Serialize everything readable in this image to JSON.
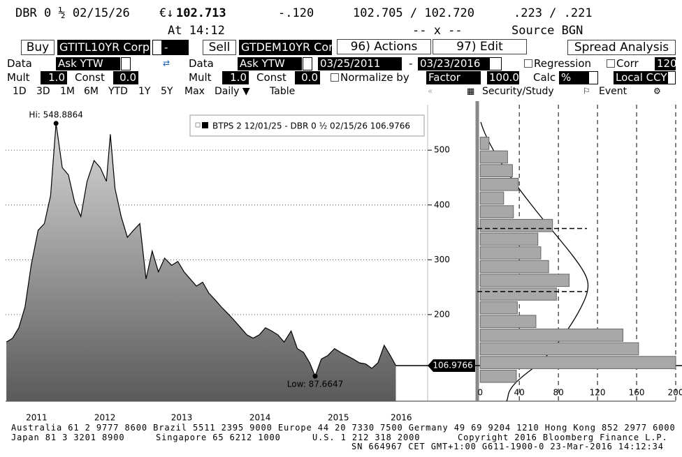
{
  "header": {
    "ticker": "DBR 0 ½ 02/15/26",
    "price_prefix": "€↓",
    "price": "102.713",
    "change": "-.120",
    "bid_ask": "102.705 / 102.720",
    "yields": ".223 / .221",
    "time": "At 14:12",
    "cross": "-- x --",
    "source": "Source BGN"
  },
  "toolbar": {
    "buy": "Buy",
    "security1": "GTITL10YR Corp",
    "security1_flag": "-",
    "sell": "Sell",
    "security2": "GTDEM10YR Cor",
    "actions": "96) Actions",
    "edit": "97) Edit",
    "spread": "Spread Analysis"
  },
  "settings": {
    "left": {
      "data_label": "Data",
      "data_value": "Ask YTW",
      "mult_label": "Mult",
      "mult_value": "1.0",
      "const_label": "Const",
      "const_value": "0.0"
    },
    "right": {
      "data_label": "Data",
      "data_value": "Ask YTW",
      "date_from": "03/25/2011",
      "dash": "-",
      "date_to": "03/23/2016",
      "mult_label": "Mult",
      "mult_value": "1.0",
      "const_label": "Const",
      "const_value": "0.0"
    },
    "options": {
      "regression": "Regression",
      "corr": "Corr",
      "corr_value": "120",
      "normalize": "Normalize by",
      "factor": "Factor",
      "factor_value": "100.0",
      "calc": "Calc",
      "calc_value": "%",
      "currency": "Local CCY"
    }
  },
  "ranges": [
    "1D",
    "3D",
    "1M",
    "6M",
    "YTD",
    "1Y",
    "5Y",
    "Max"
  ],
  "view": {
    "period": "Daily ▼",
    "table": "Table",
    "study": "Security/Study",
    "event": "Event"
  },
  "footer": {
    "line1": "Australia 61 2 9777 8600 Brazil 5511 2395 9000 Europe 44 20 7330 7500 Germany 49 69 9204 1210 Hong Kong 852 2977 6000",
    "japan": "Japan 81 3 3201 8900",
    "singapore": "Singapore 65 6212 1000",
    "us": "U.S. 1 212 318 2000",
    "copyright": "Copyright 2016 Bloomberg Finance L.P.",
    "line3": "SN 664967 CET   GMT+1:00 G611-1900-0 23-Mar-2016 14:12:34"
  },
  "chart_data": [
    {
      "type": "area",
      "x": [
        2011.23,
        2011.31,
        2011.39,
        2011.47,
        2011.55,
        2011.64,
        2011.72,
        2011.8,
        2011.87,
        2011.95,
        2012.03,
        2012.11,
        2012.19,
        2012.27,
        2012.36,
        2012.44,
        2012.52,
        2012.57,
        2012.63,
        2012.71,
        2012.79,
        2012.87,
        2012.95,
        2013.03,
        2013.11,
        2013.19,
        2013.27,
        2013.36,
        2013.44,
        2013.52,
        2013.6,
        2013.68,
        2013.76,
        2013.84,
        2013.92,
        2014.0,
        2014.09,
        2014.17,
        2014.25,
        2014.33,
        2014.41,
        2014.49,
        2014.57,
        2014.65,
        2014.73,
        2014.81,
        2014.9,
        2014.98,
        2015.06,
        2015.14,
        2015.21,
        2015.29,
        2015.37,
        2015.46,
        2015.54,
        2015.62,
        2015.7,
        2015.78,
        2015.86,
        2015.94,
        2016.02,
        2016.1,
        2016.18,
        2016.25
      ],
      "series": [
        {
          "name": "BTPS 2 12/01/25 - DBR 0 ½ 02/15/26 106.9766",
          "color": "#000000",
          "values": [
            150,
            157,
            176,
            214,
            290,
            354,
            366,
            417,
            548.8864,
            468,
            455,
            405,
            379,
            443,
            481,
            468,
            443,
            529,
            430,
            379,
            341,
            354,
            366,
            265,
            316,
            278,
            303,
            290,
            297,
            278,
            265,
            252,
            259,
            239,
            227,
            214,
            201,
            189,
            176,
            163,
            157,
            163,
            176,
            170,
            163,
            150,
            170,
            138,
            131,
            112,
            87.6647,
            119,
            125,
            138,
            131,
            125,
            119,
            112,
            110,
            102,
            112,
            144,
            125,
            106.9766
          ]
        }
      ],
      "xlim": [
        2011.22,
        2016.66
      ],
      "xticks": [
        {
          "value": 2011.62,
          "label": "2011"
        },
        {
          "value": 2012.5,
          "label": "2012"
        },
        {
          "value": 2013.49,
          "label": "2013"
        },
        {
          "value": 2014.5,
          "label": "2014"
        },
        {
          "value": 2015.51,
          "label": "2015"
        },
        {
          "value": 2016.32,
          "label": "2016"
        }
      ],
      "ylim": [
        42,
        583
      ],
      "yticks": [
        200,
        300,
        400,
        500
      ],
      "grid": true,
      "annotations": [
        {
          "text": "Hi: 548.8864",
          "x": 2011.87,
          "y": 548.8864
        },
        {
          "text": "Low: 87.6647",
          "x": 2015.21,
          "y": 87.6647
        },
        {
          "text": "106.9766",
          "y": 106.9766
        }
      ]
    },
    {
      "type": "histogram",
      "orientation": "horizontal",
      "bins": [
        75,
        100,
        125,
        150,
        175,
        200,
        225,
        250,
        275,
        300,
        325,
        350,
        375,
        400,
        425,
        450,
        475,
        500,
        525
      ],
      "counts": [
        37,
        200,
        162,
        146,
        57,
        38,
        78,
        91,
        70,
        62,
        59,
        74,
        34,
        24,
        39,
        33,
        28,
        9
      ],
      "color": "#a8a8a8",
      "xlim": [
        -3,
        200
      ],
      "xticks": [
        0,
        40,
        80,
        120,
        160,
        200
      ],
      "ylim": [
        42,
        583
      ],
      "grid": true,
      "hlines": [
        357,
        242
      ]
    }
  ]
}
